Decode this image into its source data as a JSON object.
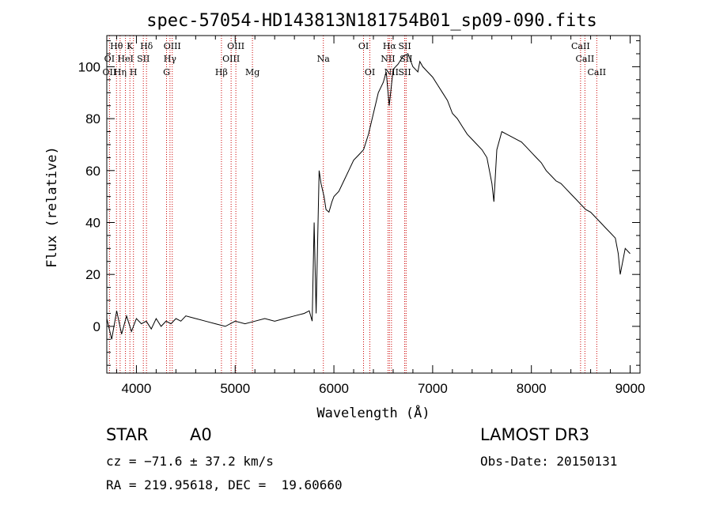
{
  "chart_data": {
    "type": "line",
    "title": "spec-57054-HD143813N181754B01_sp09-090.fits",
    "xlabel": "Wavelength (Å)",
    "ylabel": "Flux (relative)",
    "xlim": [
      3700,
      9100
    ],
    "ylim": [
      -18,
      112
    ],
    "xticks": [
      4000,
      5000,
      6000,
      7000,
      8000,
      9000
    ],
    "yticks": [
      0,
      20,
      40,
      60,
      80,
      100
    ],
    "grid": false,
    "line_color": "#000000",
    "marker_color": "#cc0000",
    "series": [
      {
        "x": [
          3700,
          3750,
          3800,
          3850,
          3900,
          3950,
          4000,
          4050,
          4100,
          4150,
          4200,
          4250,
          4300,
          4350,
          4400,
          4450,
          4500,
          4600,
          4700,
          4800,
          4900,
          5000,
          5100,
          5200,
          5300,
          5400,
          5500,
          5600,
          5700,
          5750,
          5780,
          5800,
          5820,
          5850,
          5870,
          5900,
          5920,
          5950,
          5980,
          6000,
          6050,
          6100,
          6150,
          6200,
          6250,
          6300,
          6350,
          6400,
          6450,
          6500,
          6530,
          6560,
          6600,
          6650,
          6700,
          6750,
          6800,
          6850,
          6870,
          6900,
          6950,
          7000,
          7050,
          7100,
          7150,
          7200,
          7250,
          7300,
          7350,
          7400,
          7450,
          7500,
          7550,
          7600,
          7620,
          7650,
          7700,
          7750,
          7800,
          7850,
          7900,
          7950,
          8000,
          8050,
          8100,
          8150,
          8200,
          8250,
          8300,
          8350,
          8400,
          8450,
          8500,
          8550,
          8600,
          8650,
          8700,
          8750,
          8800,
          8850,
          8880,
          8900,
          8950,
          9000
        ],
        "y": [
          3,
          -5,
          6,
          -3,
          4,
          -2,
          3,
          1,
          2,
          -1,
          3,
          0,
          2,
          1,
          3,
          2,
          4,
          3,
          2,
          1,
          0,
          2,
          1,
          2,
          3,
          2,
          3,
          4,
          5,
          6,
          2,
          40,
          5,
          60,
          55,
          50,
          45,
          44,
          48,
          50,
          52,
          56,
          60,
          64,
          66,
          68,
          74,
          82,
          90,
          94,
          98,
          85,
          99,
          101,
          104,
          105,
          100,
          98,
          102,
          100,
          98,
          96,
          93,
          90,
          87,
          82,
          80,
          77,
          74,
          72,
          70,
          68,
          65,
          55,
          48,
          68,
          75,
          74,
          73,
          72,
          71,
          69,
          67,
          65,
          63,
          60,
          58,
          56,
          55,
          53,
          51,
          49,
          47,
          45,
          44,
          42,
          40,
          38,
          36,
          34,
          28,
          20,
          30,
          28
        ]
      }
    ],
    "line_markers": [
      {
        "label": "Hθ",
        "x": 3798,
        "row": 1
      },
      {
        "label": "K",
        "x": 3934,
        "row": 1
      },
      {
        "label": "Hδ",
        "x": 4102,
        "row": 1
      },
      {
        "label": "OIII",
        "x": 4363,
        "row": 1
      },
      {
        "label": "OIII",
        "x": 5007,
        "row": 1
      },
      {
        "label": "OI",
        "x": 6300,
        "row": 1
      },
      {
        "label": "Hα",
        "x": 6563,
        "row": 1
      },
      {
        "label": "SII",
        "x": 6717,
        "row": 1
      },
      {
        "label": "CaII",
        "x": 8498,
        "row": 1
      },
      {
        "label": "OI",
        "x": 3727,
        "row": 2
      },
      {
        "label": "HeI",
        "x": 3889,
        "row": 2
      },
      {
        "label": "SII",
        "x": 4070,
        "row": 2
      },
      {
        "label": "Hγ",
        "x": 4340,
        "row": 2
      },
      {
        "label": "OIII",
        "x": 4959,
        "row": 2
      },
      {
        "label": "Na",
        "x": 5893,
        "row": 2
      },
      {
        "label": "NII",
        "x": 6548,
        "row": 2
      },
      {
        "label": "SII",
        "x": 6731,
        "row": 2
      },
      {
        "label": "CaII",
        "x": 8542,
        "row": 2
      },
      {
        "label": "OII",
        "x": 3727,
        "row": 3
      },
      {
        "label": "Hη",
        "x": 3835,
        "row": 3
      },
      {
        "label": "H",
        "x": 3970,
        "row": 3
      },
      {
        "label": "G",
        "x": 4305,
        "row": 3
      },
      {
        "label": "Hβ",
        "x": 4861,
        "row": 3
      },
      {
        "label": "Mg",
        "x": 5175,
        "row": 3
      },
      {
        "label": "OI",
        "x": 6364,
        "row": 3
      },
      {
        "label": "NII",
        "x": 6583,
        "row": 3
      },
      {
        "label": "SII",
        "x": 6717,
        "row": 3
      },
      {
        "label": "CaII",
        "x": 8662,
        "row": 3
      }
    ]
  },
  "info": {
    "class": "STAR",
    "subclass": "A0",
    "survey": "LAMOST DR3",
    "cz": "cz = −71.6 ± 37.2 km/s",
    "obs_date": "Obs-Date: 20150131",
    "coords": "RA = 219.95618, DEC =  19.60660"
  }
}
